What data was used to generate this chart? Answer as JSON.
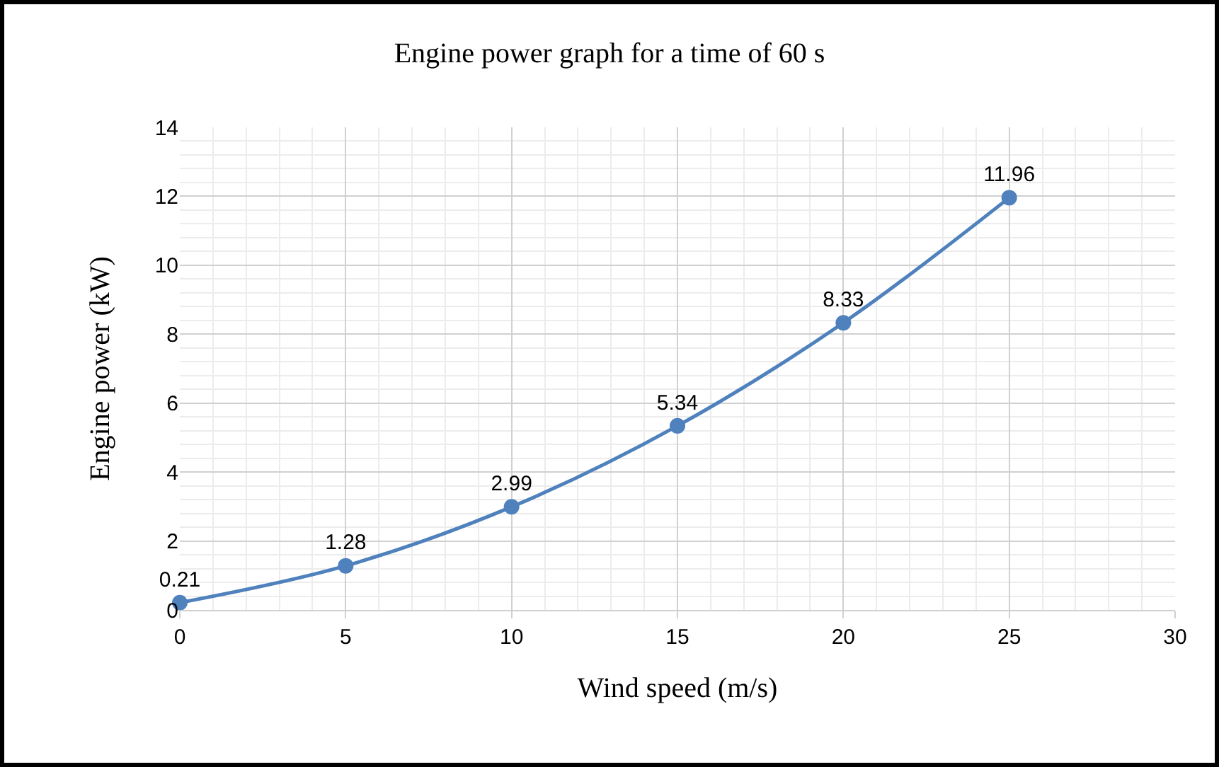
{
  "chart_data": {
    "type": "line",
    "title": "Engine power graph for a time of 60 s",
    "xlabel": "Wind speed (m/s)",
    "ylabel": "Engine power (kW)",
    "x": [
      0,
      5,
      10,
      15,
      20,
      25
    ],
    "series": [
      {
        "color": "#4f81bd",
        "values": [
          0.21,
          1.28,
          2.99,
          5.34,
          8.33,
          11.96
        ]
      }
    ],
    "xlim": [
      0,
      30
    ],
    "xticks": [
      0,
      5,
      10,
      15,
      20,
      25,
      30
    ],
    "ylim": [
      0,
      14
    ],
    "yticks": [
      0,
      2,
      4,
      6,
      8,
      10,
      12,
      14
    ],
    "grid": true,
    "marker": "circle",
    "line_style": "solid",
    "data_labels": true
  }
}
